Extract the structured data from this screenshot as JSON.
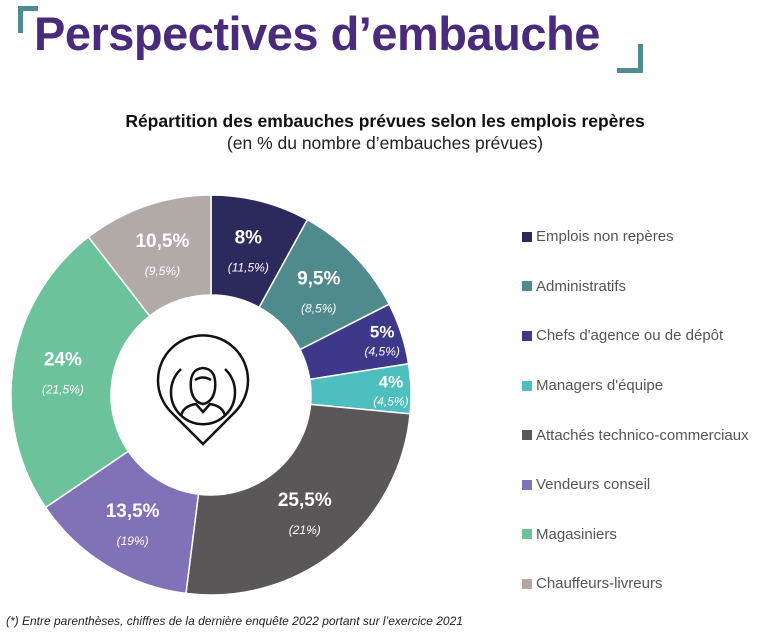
{
  "header": {
    "title": "Perspectives d’embauche"
  },
  "footnote": "(*) Entre parenthèses, chiffres de la dernière enquête 2022 portant sur l’exercice 2021",
  "chart_data": {
    "type": "pie",
    "donut": true,
    "title": "Répartition des embauches prévues selon les emplois repères",
    "subtitle": "(en % du nombre d’embauches prévues)",
    "legend_position": "right",
    "center_icon": "person-location-pin-icon",
    "categories": [
      "Emplois non repères",
      "Administratifs",
      "Chefs d'agence ou de dépôt",
      "Managers d'équipe",
      "Attachés technico-commerciaux",
      "Vendeurs conseil",
      "Magasiniers",
      "Chauffeurs-livreurs"
    ],
    "values": [
      8,
      9.5,
      5,
      4,
      25.5,
      13.5,
      24,
      10.5
    ],
    "labels": [
      "8%",
      "9,5%",
      "5%",
      "4%",
      "25,5%",
      "13,5%",
      "24%",
      "10,5%"
    ],
    "previous_labels": [
      "(11,5%)",
      "(8,5%)",
      "(4,5%)",
      "(4,5%)",
      "(21%)",
      "(19%)",
      "(21,5%)",
      "(9,5%)"
    ],
    "colors": [
      "#2c2a5c",
      "#4f8b8c",
      "#3d3889",
      "#4dbfbf",
      "#595757",
      "#8171b6",
      "#6cc29a",
      "#b2aaa7"
    ]
  }
}
